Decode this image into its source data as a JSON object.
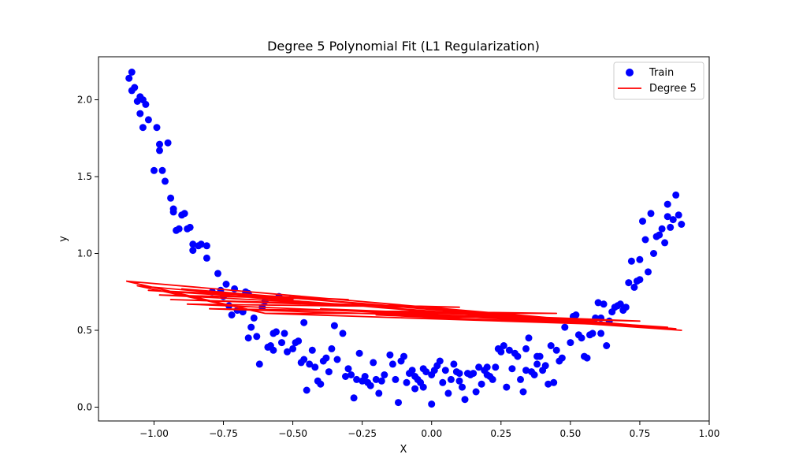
{
  "chart_data": {
    "type": "scatter",
    "title": "Degree 5 Polynomial Fit (L1 Regularization)",
    "xlabel": "X",
    "ylabel": "y",
    "xlim": [
      -1.2,
      1.0
    ],
    "ylim": [
      -0.09,
      2.28
    ],
    "x_ticks": [
      -1.0,
      -0.75,
      -0.5,
      -0.25,
      0.0,
      0.25,
      0.5,
      0.75,
      1.0
    ],
    "x_tick_labels": [
      "−1.00",
      "−0.75",
      "−0.50",
      "−0.25",
      "0.00",
      "0.25",
      "0.50",
      "0.75",
      "1.00"
    ],
    "y_ticks": [
      0.0,
      0.5,
      1.0,
      1.5,
      2.0
    ],
    "y_tick_labels": [
      "0.0",
      "0.5",
      "1.0",
      "1.5",
      "2.0"
    ],
    "grid": false,
    "legend": {
      "placement": "top-right",
      "entries": [
        {
          "label": "Train",
          "kind": "marker",
          "color": "#0000ff"
        },
        {
          "label": "Degree 5",
          "kind": "line",
          "color": "#ff0000"
        }
      ]
    },
    "series": [
      {
        "name": "Train",
        "kind": "scatter",
        "color": "#0000ff",
        "points": [
          [
            -1.09,
            2.14
          ],
          [
            -1.08,
            2.18
          ],
          [
            -1.08,
            2.06
          ],
          [
            -1.07,
            2.08
          ],
          [
            -1.06,
            1.99
          ],
          [
            -1.05,
            2.02
          ],
          [
            -1.05,
            1.91
          ],
          [
            -1.04,
            2.0
          ],
          [
            -1.04,
            1.82
          ],
          [
            -1.03,
            1.97
          ],
          [
            -1.02,
            1.87
          ],
          [
            -1.0,
            1.54
          ],
          [
            -0.99,
            1.82
          ],
          [
            -0.98,
            1.71
          ],
          [
            -0.98,
            1.67
          ],
          [
            -0.97,
            1.54
          ],
          [
            -0.96,
            1.47
          ],
          [
            -0.95,
            1.72
          ],
          [
            -0.94,
            1.36
          ],
          [
            -0.93,
            1.27
          ],
          [
            -0.93,
            1.29
          ],
          [
            -0.92,
            1.15
          ],
          [
            -0.91,
            1.16
          ],
          [
            -0.9,
            1.25
          ],
          [
            -0.89,
            1.26
          ],
          [
            -0.88,
            1.16
          ],
          [
            -0.87,
            1.17
          ],
          [
            -0.86,
            1.02
          ],
          [
            -0.86,
            1.06
          ],
          [
            -0.84,
            1.05
          ],
          [
            -0.83,
            1.06
          ],
          [
            -0.81,
            0.97
          ],
          [
            -0.81,
            1.05
          ],
          [
            -0.79,
            0.75
          ],
          [
            -0.77,
            0.87
          ],
          [
            -0.76,
            0.76
          ],
          [
            -0.75,
            0.72
          ],
          [
            -0.74,
            0.8
          ],
          [
            -0.73,
            0.66
          ],
          [
            -0.72,
            0.6
          ],
          [
            -0.71,
            0.77
          ],
          [
            -0.7,
            0.63
          ],
          [
            -0.68,
            0.62
          ],
          [
            -0.67,
            0.75
          ],
          [
            -0.66,
            0.74
          ],
          [
            -0.66,
            0.45
          ],
          [
            -0.65,
            0.52
          ],
          [
            -0.64,
            0.58
          ],
          [
            -0.63,
            0.46
          ],
          [
            -0.62,
            0.28
          ],
          [
            -0.61,
            0.65
          ],
          [
            -0.6,
            0.69
          ],
          [
            -0.59,
            0.39
          ],
          [
            -0.58,
            0.4
          ],
          [
            -0.57,
            0.48
          ],
          [
            -0.57,
            0.37
          ],
          [
            -0.56,
            0.49
          ],
          [
            -0.55,
            0.72
          ],
          [
            -0.54,
            0.42
          ],
          [
            -0.53,
            0.48
          ],
          [
            -0.52,
            0.36
          ],
          [
            -0.51,
            0.7
          ],
          [
            -0.5,
            0.38
          ],
          [
            -0.49,
            0.42
          ],
          [
            -0.48,
            0.43
          ],
          [
            -0.47,
            0.29
          ],
          [
            -0.46,
            0.55
          ],
          [
            -0.46,
            0.31
          ],
          [
            -0.45,
            0.11
          ],
          [
            -0.44,
            0.28
          ],
          [
            -0.43,
            0.37
          ],
          [
            -0.42,
            0.26
          ],
          [
            -0.41,
            0.17
          ],
          [
            -0.4,
            0.15
          ],
          [
            -0.39,
            0.3
          ],
          [
            -0.38,
            0.32
          ],
          [
            -0.37,
            0.23
          ],
          [
            -0.36,
            0.38
          ],
          [
            -0.35,
            0.53
          ],
          [
            -0.34,
            0.31
          ],
          [
            -0.32,
            0.48
          ],
          [
            -0.31,
            0.2
          ],
          [
            -0.3,
            0.25
          ],
          [
            -0.29,
            0.21
          ],
          [
            -0.28,
            0.06
          ],
          [
            -0.27,
            0.18
          ],
          [
            -0.26,
            0.35
          ],
          [
            -0.25,
            0.17
          ],
          [
            -0.24,
            0.2
          ],
          [
            -0.23,
            0.16
          ],
          [
            -0.22,
            0.14
          ],
          [
            -0.21,
            0.29
          ],
          [
            -0.2,
            0.18
          ],
          [
            -0.19,
            0.09
          ],
          [
            -0.18,
            0.17
          ],
          [
            -0.17,
            0.21
          ],
          [
            -0.15,
            0.34
          ],
          [
            -0.14,
            0.28
          ],
          [
            -0.13,
            0.18
          ],
          [
            -0.12,
            0.03
          ],
          [
            -0.11,
            0.3
          ],
          [
            -0.1,
            0.33
          ],
          [
            -0.09,
            0.16
          ],
          [
            -0.08,
            0.22
          ],
          [
            -0.07,
            0.24
          ],
          [
            -0.06,
            0.2
          ],
          [
            -0.06,
            0.12
          ],
          [
            -0.05,
            0.18
          ],
          [
            -0.04,
            0.16
          ],
          [
            -0.03,
            0.13
          ],
          [
            -0.03,
            0.25
          ],
          [
            -0.02,
            0.23
          ],
          [
            0.0,
            0.21
          ],
          [
            0.0,
            0.02
          ],
          [
            0.01,
            0.24
          ],
          [
            0.02,
            0.27
          ],
          [
            0.03,
            0.3
          ],
          [
            0.04,
            0.16
          ],
          [
            0.05,
            0.24
          ],
          [
            0.06,
            0.09
          ],
          [
            0.07,
            0.18
          ],
          [
            0.08,
            0.28
          ],
          [
            0.09,
            0.23
          ],
          [
            0.1,
            0.17
          ],
          [
            0.1,
            0.22
          ],
          [
            0.11,
            0.13
          ],
          [
            0.12,
            0.05
          ],
          [
            0.13,
            0.22
          ],
          [
            0.14,
            0.21
          ],
          [
            0.15,
            0.22
          ],
          [
            0.16,
            0.1
          ],
          [
            0.17,
            0.26
          ],
          [
            0.18,
            0.15
          ],
          [
            0.19,
            0.24
          ],
          [
            0.2,
            0.26
          ],
          [
            0.2,
            0.21
          ],
          [
            0.21,
            0.2
          ],
          [
            0.22,
            0.18
          ],
          [
            0.23,
            0.26
          ],
          [
            0.24,
            0.38
          ],
          [
            0.25,
            0.36
          ],
          [
            0.26,
            0.4
          ],
          [
            0.27,
            0.13
          ],
          [
            0.28,
            0.37
          ],
          [
            0.29,
            0.25
          ],
          [
            0.3,
            0.35
          ],
          [
            0.31,
            0.33
          ],
          [
            0.32,
            0.18
          ],
          [
            0.33,
            0.1
          ],
          [
            0.34,
            0.38
          ],
          [
            0.34,
            0.24
          ],
          [
            0.35,
            0.45
          ],
          [
            0.36,
            0.23
          ],
          [
            0.37,
            0.21
          ],
          [
            0.38,
            0.28
          ],
          [
            0.38,
            0.33
          ],
          [
            0.39,
            0.33
          ],
          [
            0.4,
            0.24
          ],
          [
            0.41,
            0.27
          ],
          [
            0.42,
            0.15
          ],
          [
            0.43,
            0.4
          ],
          [
            0.44,
            0.16
          ],
          [
            0.45,
            0.37
          ],
          [
            0.46,
            0.3
          ],
          [
            0.47,
            0.32
          ],
          [
            0.48,
            0.52
          ],
          [
            0.5,
            0.42
          ],
          [
            0.51,
            0.59
          ],
          [
            0.52,
            0.6
          ],
          [
            0.53,
            0.47
          ],
          [
            0.54,
            0.45
          ],
          [
            0.55,
            0.33
          ],
          [
            0.56,
            0.32
          ],
          [
            0.57,
            0.47
          ],
          [
            0.58,
            0.48
          ],
          [
            0.59,
            0.58
          ],
          [
            0.6,
            0.68
          ],
          [
            0.61,
            0.48
          ],
          [
            0.61,
            0.58
          ],
          [
            0.62,
            0.67
          ],
          [
            0.63,
            0.4
          ],
          [
            0.64,
            0.56
          ],
          [
            0.65,
            0.62
          ],
          [
            0.66,
            0.65
          ],
          [
            0.67,
            0.66
          ],
          [
            0.68,
            0.67
          ],
          [
            0.69,
            0.63
          ],
          [
            0.7,
            0.65
          ],
          [
            0.71,
            0.81
          ],
          [
            0.72,
            0.95
          ],
          [
            0.73,
            0.78
          ],
          [
            0.74,
            0.82
          ],
          [
            0.75,
            0.83
          ],
          [
            0.75,
            0.96
          ],
          [
            0.76,
            1.21
          ],
          [
            0.77,
            1.09
          ],
          [
            0.78,
            0.88
          ],
          [
            0.79,
            1.26
          ],
          [
            0.8,
            1.0
          ],
          [
            0.81,
            1.11
          ],
          [
            0.82,
            1.12
          ],
          [
            0.83,
            1.16
          ],
          [
            0.84,
            1.07
          ],
          [
            0.85,
            1.24
          ],
          [
            0.85,
            1.32
          ],
          [
            0.86,
            1.17
          ],
          [
            0.87,
            1.22
          ],
          [
            0.88,
            1.38
          ],
          [
            0.89,
            1.25
          ],
          [
            0.9,
            1.19
          ]
        ]
      },
      {
        "name": "Degree 5",
        "kind": "line",
        "color": "#ff0000",
        "points": [
          [
            -1.1,
            0.82
          ],
          [
            -0.6,
            0.61
          ],
          [
            -1.06,
            0.79
          ],
          [
            -0.5,
            0.7
          ],
          [
            -1.02,
            0.76
          ],
          [
            -0.3,
            0.7
          ],
          [
            -0.98,
            0.73
          ],
          [
            -0.1,
            0.65
          ],
          [
            -0.94,
            0.7
          ],
          [
            0.1,
            0.65
          ],
          [
            -0.88,
            0.67
          ],
          [
            0.3,
            0.58
          ],
          [
            -0.8,
            0.64
          ],
          [
            0.45,
            0.61
          ],
          [
            -0.6,
            0.61
          ],
          [
            0.6,
            0.54
          ],
          [
            -0.4,
            0.64
          ],
          [
            0.75,
            0.56
          ],
          [
            -0.2,
            0.6
          ],
          [
            0.85,
            0.52
          ],
          [
            0.0,
            0.62
          ],
          [
            0.9,
            0.5
          ],
          [
            0.5,
            0.55
          ],
          [
            -0.7,
            0.72
          ],
          [
            0.7,
            0.53
          ],
          [
            -0.9,
            0.77
          ],
          [
            0.88,
            0.51
          ],
          [
            -1.1,
            0.82
          ]
        ]
      }
    ]
  }
}
